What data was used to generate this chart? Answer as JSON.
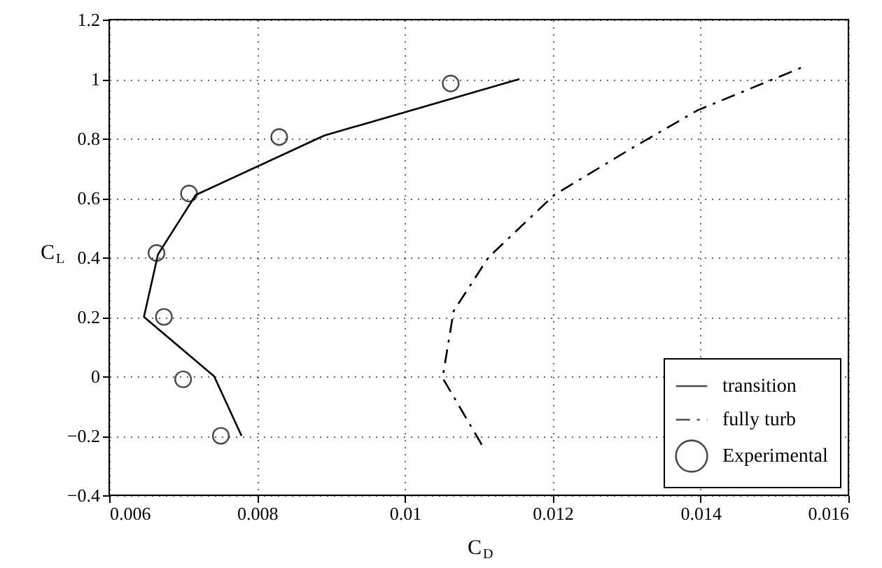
{
  "chart_data": {
    "type": "line",
    "xlabel": "C$_{D}$",
    "ylabel": "C$_{L}$",
    "xlim": [
      0.006,
      0.016
    ],
    "xticks": [
      0.006,
      0.008,
      0.01,
      0.012,
      0.014,
      0.016
    ],
    "ylim": [
      -0.4,
      1.2
    ],
    "yticks": [
      -0.4,
      -0.2,
      0,
      0.2,
      0.4,
      0.6,
      0.8,
      1,
      1.2
    ],
    "grid": true,
    "legend": "bottom right",
    "series": [
      {
        "name": "transition",
        "color": "#000000",
        "line_style": "solid",
        "marker": "none",
        "x": [
          0.00779,
          0.00742,
          0.00647,
          0.00666,
          0.00717,
          0.00891,
          0.01155
        ],
        "values": [
          -0.2,
          0,
          0.2,
          0.41,
          0.61,
          0.81,
          1.0
        ]
      },
      {
        "name": "fully turb",
        "color": "#000000",
        "line_style": "dashed",
        "marker": "none",
        "x": [
          0.01104,
          0.01051,
          0.01066,
          0.01113,
          0.01202,
          0.01302,
          0.01396,
          0.01538
        ],
        "values": [
          -0.23,
          -0.005,
          0.22,
          0.4,
          0.61,
          0.76,
          0.895,
          1.04
        ]
      },
      {
        "name": "Experimental",
        "color": "#000000",
        "type": "scatter",
        "marker": "circle",
        "x": [
          0.00751,
          0.007,
          0.00674,
          0.00664,
          0.00708,
          0.0083,
          0.01062
        ],
        "values": [
          -0.2,
          -0.01,
          0.2,
          0.415,
          0.615,
          0.805,
          0.985
        ]
      }
    ]
  }
}
